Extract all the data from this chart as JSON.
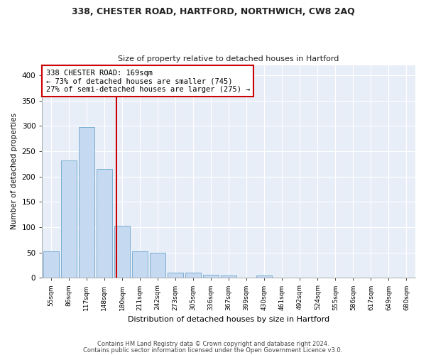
{
  "title1": "338, CHESTER ROAD, HARTFORD, NORTHWICH, CW8 2AQ",
  "title2": "Size of property relative to detached houses in Hartford",
  "xlabel": "Distribution of detached houses by size in Hartford",
  "ylabel": "Number of detached properties",
  "bar_labels": [
    "55sqm",
    "86sqm",
    "117sqm",
    "148sqm",
    "180sqm",
    "211sqm",
    "242sqm",
    "273sqm",
    "305sqm",
    "336sqm",
    "367sqm",
    "399sqm",
    "430sqm",
    "461sqm",
    "492sqm",
    "524sqm",
    "555sqm",
    "586sqm",
    "617sqm",
    "649sqm",
    "680sqm"
  ],
  "bar_heights": [
    52,
    232,
    298,
    215,
    103,
    52,
    50,
    10,
    10,
    6,
    5,
    0,
    4,
    0,
    0,
    0,
    0,
    0,
    0,
    1,
    0
  ],
  "bar_color": "#c5d9f0",
  "bar_edge_color": "#7bafd4",
  "bg_color": "#e8eef8",
  "grid_color": "#ffffff",
  "vline_color": "#cc0000",
  "annotation_text": "338 CHESTER ROAD: 169sqm\n← 73% of detached houses are smaller (745)\n27% of semi-detached houses are larger (275) →",
  "annotation_box_color": "#ffffff",
  "annotation_box_edge": "#cc0000",
  "footer1": "Contains HM Land Registry data © Crown copyright and database right 2024.",
  "footer2": "Contains public sector information licensed under the Open Government Licence v3.0.",
  "ylim": [
    0,
    420
  ],
  "yticks": [
    0,
    50,
    100,
    150,
    200,
    250,
    300,
    350,
    400
  ]
}
